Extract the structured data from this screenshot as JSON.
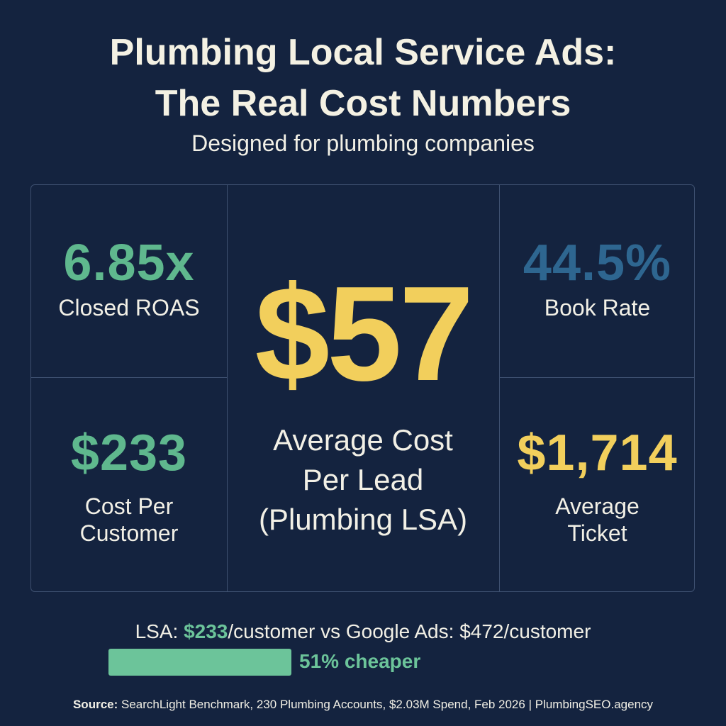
{
  "header": {
    "title_line1": "Plumbing Local Service Ads:",
    "title_line2": "The Real Cost Numbers",
    "subtitle": "Designed for plumbing companies"
  },
  "metrics": {
    "roas": {
      "value": "6.85x",
      "label": "Closed ROAS",
      "color": "#5fb88e"
    },
    "book_rate": {
      "value": "44.5%",
      "label": "Book Rate",
      "color": "#2e6690"
    },
    "cost_per_customer": {
      "value": "$233",
      "label_line1": "Cost Per",
      "label_line2": "Customer",
      "color": "#5fb88e"
    },
    "average_ticket": {
      "value": "$1,714",
      "label_line1": "Average",
      "label_line2": "Ticket",
      "color": "#f2cf5c"
    },
    "hero": {
      "value": "$57",
      "label_line1": "Average Cost",
      "label_line2": "Per Lead",
      "label_line3": "(Plumbing LSA)",
      "color": "#f2cf5c"
    }
  },
  "comparison": {
    "prefix": "LSA: ",
    "lsa_value": "$233",
    "middle": "/customer vs Google Ads: $472/customer",
    "savings_percent": 51,
    "savings_label": "51% cheaper",
    "accent_color": "#6cc49a"
  },
  "footer": {
    "source_label": "Source:",
    "source_text": " SearchLight Benchmark, 230 Plumbing Accounts, $2.03M Spend, Feb 2026 | PlumbingSEO.agency"
  },
  "colors": {
    "background": "#14233f",
    "grid_line": "#3e5070",
    "text": "#f2f0e6"
  }
}
